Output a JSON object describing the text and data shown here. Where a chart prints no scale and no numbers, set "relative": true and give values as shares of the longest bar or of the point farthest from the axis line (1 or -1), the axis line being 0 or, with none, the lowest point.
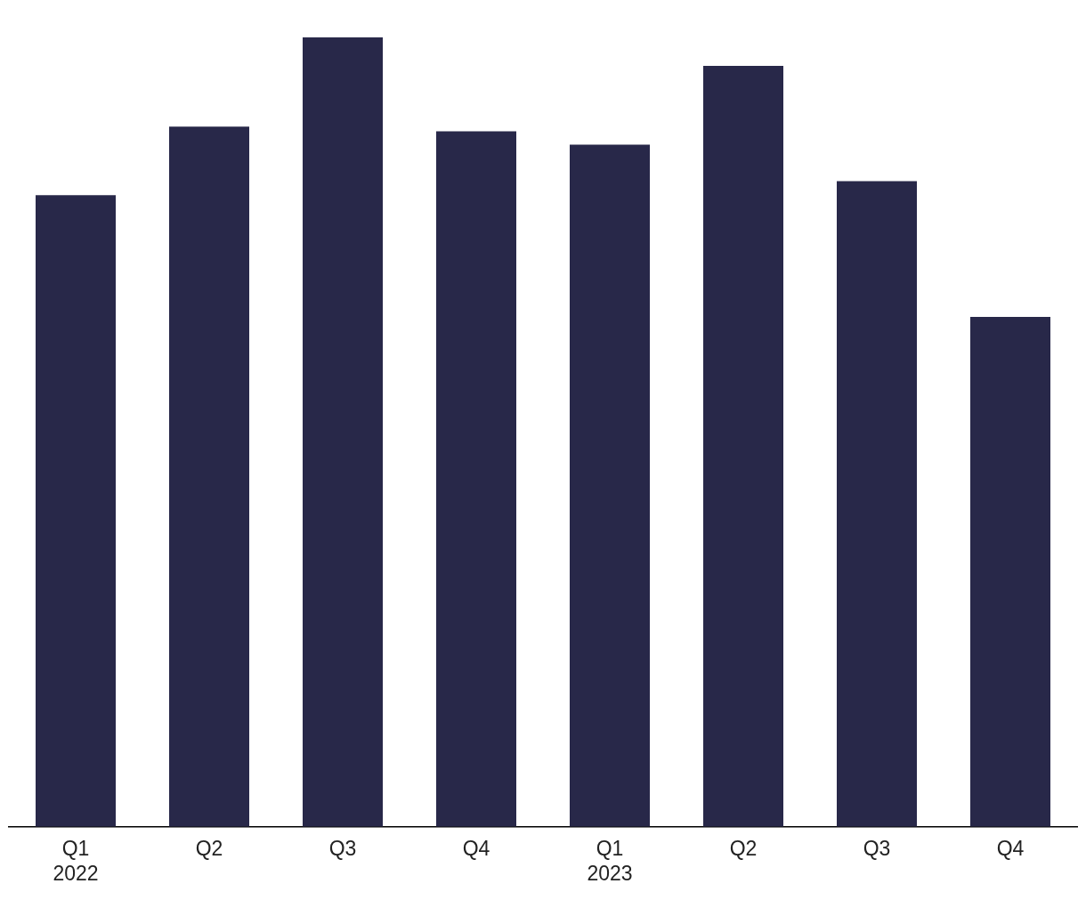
{
  "chart_data": {
    "type": "bar",
    "relative": true,
    "categories": [
      "Q1\n2022",
      "Q2",
      "Q3",
      "Q4",
      "Q1\n2023",
      "Q2",
      "Q3",
      "Q4"
    ],
    "values": [
      0.8,
      0.887,
      1,
      0.881,
      0.864,
      0.964,
      0.818,
      0.646
    ],
    "color": "#282849",
    "grid": false,
    "legend": false
  }
}
